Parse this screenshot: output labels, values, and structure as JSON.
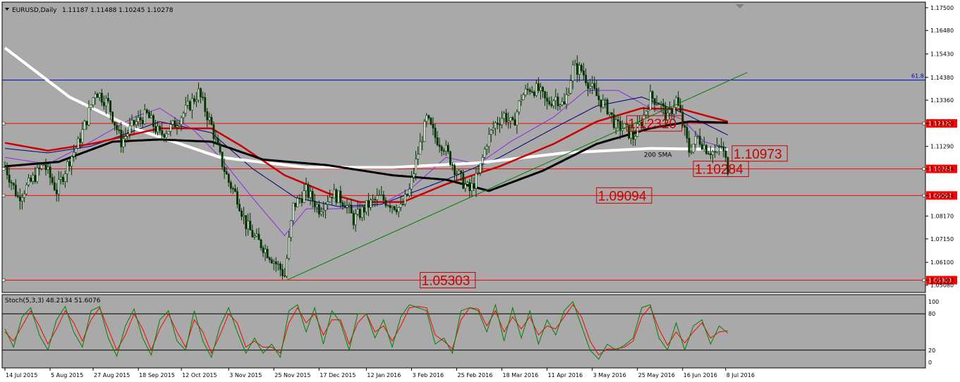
{
  "header": {
    "symbol": "EURUSD,Daily",
    "ohlc": "1.11187 1.11488 1.10245 1.10278",
    "stoch_label": "Stoch(5,3,3) 48.2134 51.6076"
  },
  "colors": {
    "background": "#a9a9a9",
    "grid": "#bdbdbd",
    "candle": "#003300",
    "sma200": "#ffffff",
    "ma_black": "#000000",
    "ma_red": "#cc0000",
    "ma_navy": "#000080",
    "ma_violet": "#8a2be2",
    "trendline": "#008000",
    "fib_line": "#0000cc",
    "hline": "#ff0000",
    "stoch_main": "#008000",
    "stoch_signal": "#ff0000"
  },
  "chart_data": {
    "type": "candlestick",
    "title": "EURUSD,Daily",
    "price_axis": {
      "range": [
        1.0475,
        1.1775
      ],
      "ticks": [
        "1.17500",
        "1.16480",
        "1.15430",
        "1.14380",
        "1.13360",
        "1.12320",
        "1.11290",
        "1.10284",
        "1.09094",
        "1.08170",
        "1.07150",
        "1.06100",
        "1.05303",
        "1.05080"
      ]
    },
    "x_axis": {
      "labels": [
        "14 Jul 2015",
        "5 Aug 2015",
        "27 Aug 2015",
        "18 Sep 2015",
        "12 Oct 2015",
        "3 Nov 2015",
        "25 Nov 2015",
        "17 Dec 2015",
        "12 Jan 2016",
        "3 Feb 2016",
        "25 Feb 2016",
        "18 Mar 2016",
        "11 Apr 2016",
        "3 May 2016",
        "25 May 2016",
        "16 Jun 2016",
        "8 Jul 2016"
      ]
    },
    "close_path": [
      [
        0,
        1.104
      ],
      [
        6,
        1.09
      ],
      [
        12,
        1.097
      ],
      [
        18,
        1.105
      ],
      [
        24,
        1.093
      ],
      [
        30,
        1.107
      ],
      [
        34,
        1.114
      ],
      [
        38,
        1.125
      ],
      [
        42,
        1.138
      ],
      [
        48,
        1.132
      ],
      [
        54,
        1.115
      ],
      [
        60,
        1.123
      ],
      [
        66,
        1.127
      ],
      [
        72,
        1.118
      ],
      [
        78,
        1.122
      ],
      [
        84,
        1.129
      ],
      [
        90,
        1.137
      ],
      [
        96,
        1.122
      ],
      [
        100,
        1.108
      ],
      [
        104,
        1.097
      ],
      [
        108,
        1.09
      ],
      [
        112,
        1.078
      ],
      [
        116,
        1.072
      ],
      [
        120,
        1.068
      ],
      [
        124,
        1.063
      ],
      [
        128,
        1.058
      ],
      [
        130,
        1.055
      ],
      [
        134,
        1.086
      ],
      [
        140,
        1.093
      ],
      [
        146,
        1.085
      ],
      [
        152,
        1.092
      ],
      [
        158,
        1.088
      ],
      [
        162,
        1.08
      ],
      [
        168,
        1.086
      ],
      [
        174,
        1.09
      ],
      [
        180,
        1.087
      ],
      [
        184,
        1.085
      ],
      [
        188,
        1.093
      ],
      [
        192,
        1.11
      ],
      [
        196,
        1.125
      ],
      [
        200,
        1.117
      ],
      [
        204,
        1.113
      ],
      [
        208,
        1.105
      ],
      [
        212,
        1.098
      ],
      [
        216,
        1.093
      ],
      [
        220,
        1.1
      ],
      [
        224,
        1.115
      ],
      [
        228,
        1.123
      ],
      [
        232,
        1.127
      ],
      [
        236,
        1.122
      ],
      [
        240,
        1.135
      ],
      [
        244,
        1.139
      ],
      [
        248,
        1.138
      ],
      [
        252,
        1.132
      ],
      [
        256,
        1.135
      ],
      [
        260,
        1.131
      ],
      [
        264,
        1.148
      ],
      [
        268,
        1.147
      ],
      [
        272,
        1.14
      ],
      [
        276,
        1.134
      ],
      [
        280,
        1.13
      ],
      [
        284,
        1.122
      ],
      [
        288,
        1.121
      ],
      [
        292,
        1.117
      ],
      [
        296,
        1.124
      ],
      [
        300,
        1.135
      ],
      [
        304,
        1.133
      ],
      [
        308,
        1.125
      ],
      [
        312,
        1.134
      ],
      [
        315,
        1.123
      ],
      [
        318,
        1.111
      ],
      [
        322,
        1.117
      ],
      [
        326,
        1.112
      ],
      [
        330,
        1.11
      ],
      [
        333,
        1.113
      ],
      [
        336,
        1.103
      ]
    ],
    "sma200_points": [
      [
        0,
        1.157
      ],
      [
        30,
        1.135
      ],
      [
        60,
        1.121
      ],
      [
        100,
        1.108
      ],
      [
        140,
        1.1035
      ],
      [
        180,
        1.1035
      ],
      [
        220,
        1.1055
      ],
      [
        260,
        1.11
      ],
      [
        300,
        1.112
      ],
      [
        336,
        1.1115
      ]
    ],
    "ma_black_points": [
      [
        0,
        1.104
      ],
      [
        25,
        1.106
      ],
      [
        50,
        1.115
      ],
      [
        72,
        1.116
      ],
      [
        96,
        1.115
      ],
      [
        120,
        1.107
      ],
      [
        150,
        1.1045
      ],
      [
        180,
        1.1
      ],
      [
        205,
        1.098
      ],
      [
        225,
        1.093
      ],
      [
        250,
        1.102
      ],
      [
        275,
        1.114
      ],
      [
        300,
        1.121
      ],
      [
        318,
        1.124
      ],
      [
        336,
        1.1235
      ]
    ],
    "ma_red_points": [
      [
        0,
        1.1145
      ],
      [
        20,
        1.111
      ],
      [
        40,
        1.114
      ],
      [
        72,
        1.121
      ],
      [
        96,
        1.121
      ],
      [
        110,
        1.113
      ],
      [
        130,
        1.1
      ],
      [
        150,
        1.092
      ],
      [
        165,
        1.088
      ],
      [
        185,
        1.088
      ],
      [
        205,
        1.096
      ],
      [
        230,
        1.104
      ],
      [
        255,
        1.114
      ],
      [
        275,
        1.124
      ],
      [
        296,
        1.13
      ],
      [
        315,
        1.1295
      ],
      [
        336,
        1.124
      ]
    ],
    "ma_navy_points": [
      [
        0,
        1.112
      ],
      [
        20,
        1.11
      ],
      [
        40,
        1.113
      ],
      [
        72,
        1.124
      ],
      [
        96,
        1.119
      ],
      [
        115,
        1.103
      ],
      [
        135,
        1.09
      ],
      [
        155,
        1.086
      ],
      [
        175,
        1.087
      ],
      [
        205,
        1.098
      ],
      [
        230,
        1.108
      ],
      [
        255,
        1.121
      ],
      [
        275,
        1.131
      ],
      [
        296,
        1.135
      ],
      [
        315,
        1.128
      ],
      [
        336,
        1.118
      ]
    ],
    "ma_violet_points": [
      [
        0,
        1.108
      ],
      [
        20,
        1.105
      ],
      [
        40,
        1.115
      ],
      [
        60,
        1.126
      ],
      [
        72,
        1.13
      ],
      [
        88,
        1.12
      ],
      [
        100,
        1.108
      ],
      [
        115,
        1.09
      ],
      [
        130,
        1.073
      ],
      [
        140,
        1.085
      ],
      [
        155,
        1.085
      ],
      [
        175,
        1.087
      ],
      [
        190,
        1.095
      ],
      [
        205,
        1.108
      ],
      [
        220,
        1.105
      ],
      [
        235,
        1.115
      ],
      [
        255,
        1.126
      ],
      [
        270,
        1.138
      ],
      [
        285,
        1.138
      ],
      [
        300,
        1.13
      ],
      [
        315,
        1.125
      ],
      [
        325,
        1.115
      ],
      [
        336,
        1.112
      ]
    ],
    "trendline": {
      "start": [
        131,
        1.05303
      ],
      "end": [
        345,
        1.146
      ]
    },
    "horizontal_levels": [
      {
        "value": 1.1232,
        "label": "1.12320",
        "line_color": "#ff0000"
      },
      {
        "value": 1.10284,
        "label": "1.10284",
        "line_color": "#ff0000"
      },
      {
        "value": 1.09094,
        "label": "1.09094",
        "line_color": "#ff0000"
      },
      {
        "value": 1.05303,
        "label": "1.05303",
        "line_color": "#ff0000"
      }
    ],
    "marker_line": {
      "value": 1.1426,
      "label": "61.8",
      "color": "#0000cc"
    },
    "floating_labels": [
      {
        "value": 1.1232,
        "text": "1.12320",
        "anchor_bar": 289
      },
      {
        "value": 1.10973,
        "text": "1.10973",
        "anchor_bar": 338
      },
      {
        "value": 1.10284,
        "text": "1.10284",
        "anchor_bar": 320
      },
      {
        "value": 1.09094,
        "text": "1.09094",
        "anchor_bar": 275
      },
      {
        "value": 1.05303,
        "text": "1.05303",
        "anchor_bar": 193
      }
    ],
    "sma_text": {
      "text": "200 SMA",
      "anchor_bar": 297,
      "value": 1.1095
    },
    "stochastic": {
      "params": "Stoch(5,3,3)",
      "main": 48.2134,
      "signal": 51.6076,
      "range": [
        0,
        100
      ],
      "levels": [
        20,
        80
      ],
      "axis_labels": [
        "100",
        "80",
        "20",
        "0"
      ],
      "main_path": [
        [
          0,
          55
        ],
        [
          4,
          25
        ],
        [
          8,
          75
        ],
        [
          12,
          90
        ],
        [
          16,
          45
        ],
        [
          20,
          20
        ],
        [
          24,
          70
        ],
        [
          28,
          92
        ],
        [
          32,
          50
        ],
        [
          36,
          25
        ],
        [
          40,
          85
        ],
        [
          44,
          92
        ],
        [
          48,
          40
        ],
        [
          52,
          10
        ],
        [
          56,
          60
        ],
        [
          60,
          88
        ],
        [
          64,
          40
        ],
        [
          68,
          12
        ],
        [
          72,
          70
        ],
        [
          76,
          85
        ],
        [
          80,
          35
        ],
        [
          84,
          20
        ],
        [
          88,
          85
        ],
        [
          92,
          35
        ],
        [
          96,
          8
        ],
        [
          100,
          60
        ],
        [
          104,
          90
        ],
        [
          108,
          50
        ],
        [
          112,
          15
        ],
        [
          116,
          40
        ],
        [
          120,
          15
        ],
        [
          124,
          30
        ],
        [
          128,
          8
        ],
        [
          132,
          85
        ],
        [
          136,
          95
        ],
        [
          140,
          50
        ],
        [
          144,
          90
        ],
        [
          148,
          30
        ],
        [
          152,
          85
        ],
        [
          156,
          65
        ],
        [
          160,
          20
        ],
        [
          164,
          80
        ],
        [
          168,
          80
        ],
        [
          172,
          40
        ],
        [
          176,
          70
        ],
        [
          180,
          25
        ],
        [
          184,
          75
        ],
        [
          188,
          95
        ],
        [
          192,
          90
        ],
        [
          196,
          85
        ],
        [
          200,
          30
        ],
        [
          204,
          40
        ],
        [
          208,
          15
        ],
        [
          212,
          85
        ],
        [
          216,
          90
        ],
        [
          220,
          85
        ],
        [
          224,
          50
        ],
        [
          228,
          95
        ],
        [
          232,
          35
        ],
        [
          236,
          90
        ],
        [
          240,
          40
        ],
        [
          244,
          85
        ],
        [
          248,
          30
        ],
        [
          252,
          70
        ],
        [
          256,
          45
        ],
        [
          260,
          85
        ],
        [
          264,
          100
        ],
        [
          268,
          60
        ],
        [
          272,
          20
        ],
        [
          276,
          5
        ],
        [
          280,
          30
        ],
        [
          284,
          20
        ],
        [
          288,
          28
        ],
        [
          292,
          40
        ],
        [
          296,
          90
        ],
        [
          300,
          95
        ],
        [
          304,
          40
        ],
        [
          308,
          20
        ],
        [
          312,
          65
        ],
        [
          316,
          20
        ],
        [
          320,
          60
        ],
        [
          324,
          70
        ],
        [
          328,
          30
        ],
        [
          332,
          60
        ],
        [
          336,
          48
        ]
      ],
      "signal_path": [
        [
          0,
          50
        ],
        [
          4,
          35
        ],
        [
          8,
          60
        ],
        [
          12,
          85
        ],
        [
          16,
          60
        ],
        [
          20,
          30
        ],
        [
          24,
          55
        ],
        [
          28,
          85
        ],
        [
          32,
          65
        ],
        [
          36,
          35
        ],
        [
          40,
          70
        ],
        [
          44,
          90
        ],
        [
          48,
          55
        ],
        [
          52,
          20
        ],
        [
          56,
          45
        ],
        [
          60,
          80
        ],
        [
          64,
          55
        ],
        [
          68,
          20
        ],
        [
          72,
          55
        ],
        [
          76,
          80
        ],
        [
          80,
          50
        ],
        [
          84,
          25
        ],
        [
          88,
          70
        ],
        [
          92,
          50
        ],
        [
          96,
          15
        ],
        [
          100,
          45
        ],
        [
          104,
          80
        ],
        [
          108,
          65
        ],
        [
          112,
          25
        ],
        [
          116,
          35
        ],
        [
          120,
          25
        ],
        [
          124,
          25
        ],
        [
          128,
          15
        ],
        [
          132,
          65
        ],
        [
          136,
          90
        ],
        [
          140,
          65
        ],
        [
          144,
          80
        ],
        [
          148,
          45
        ],
        [
          152,
          70
        ],
        [
          156,
          70
        ],
        [
          160,
          30
        ],
        [
          164,
          65
        ],
        [
          168,
          80
        ],
        [
          172,
          50
        ],
        [
          176,
          60
        ],
        [
          180,
          35
        ],
        [
          184,
          60
        ],
        [
          188,
          90
        ],
        [
          192,
          92
        ],
        [
          196,
          90
        ],
        [
          200,
          45
        ],
        [
          204,
          35
        ],
        [
          208,
          22
        ],
        [
          212,
          70
        ],
        [
          216,
          90
        ],
        [
          220,
          88
        ],
        [
          224,
          60
        ],
        [
          228,
          85
        ],
        [
          232,
          50
        ],
        [
          236,
          75
        ],
        [
          240,
          55
        ],
        [
          244,
          75
        ],
        [
          248,
          45
        ],
        [
          252,
          60
        ],
        [
          256,
          55
        ],
        [
          260,
          75
        ],
        [
          264,
          95
        ],
        [
          268,
          75
        ],
        [
          272,
          35
        ],
        [
          276,
          12
        ],
        [
          280,
          22
        ],
        [
          284,
          22
        ],
        [
          288,
          25
        ],
        [
          292,
          35
        ],
        [
          296,
          75
        ],
        [
          300,
          92
        ],
        [
          304,
          55
        ],
        [
          308,
          28
        ],
        [
          312,
          50
        ],
        [
          316,
          32
        ],
        [
          320,
          50
        ],
        [
          324,
          65
        ],
        [
          328,
          40
        ],
        [
          332,
          50
        ],
        [
          336,
          52
        ]
      ]
    }
  }
}
